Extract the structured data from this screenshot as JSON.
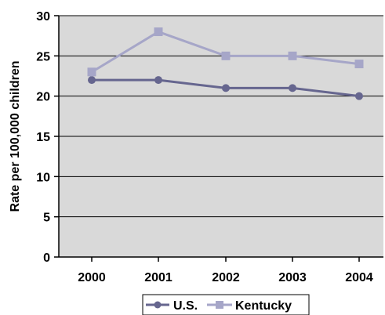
{
  "chart_data": {
    "type": "line",
    "title": "",
    "xlabel": "",
    "ylabel": "Rate per 100,000 children",
    "categories": [
      "2000",
      "2001",
      "2002",
      "2003",
      "2004"
    ],
    "ylim": [
      0,
      30
    ],
    "yticks": [
      0,
      5,
      10,
      15,
      20,
      25,
      30
    ],
    "grid": true,
    "legend_position": "bottom",
    "plot_background": "#d9d9d9",
    "series": [
      {
        "name": "U.S.",
        "values": [
          22,
          22,
          21,
          21,
          20
        ],
        "color": "#66668f",
        "marker": "circle"
      },
      {
        "name": "Kentucky",
        "values": [
          23,
          28,
          25,
          25,
          24
        ],
        "color": "#a6a6c8",
        "marker": "square"
      }
    ]
  }
}
